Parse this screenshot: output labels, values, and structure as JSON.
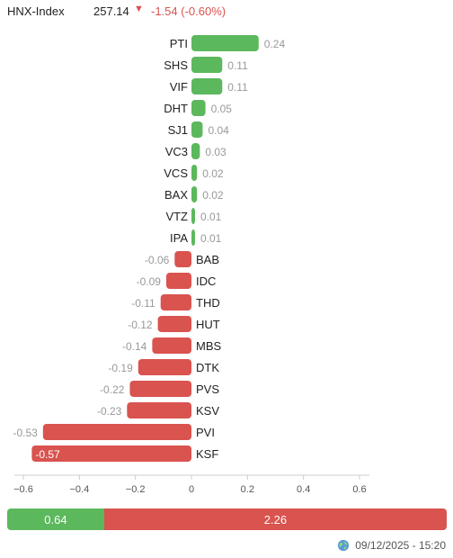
{
  "header": {
    "index_name": "HNX-Index",
    "index_value": "257.14",
    "change_text": "-1.54 (-0.60%)",
    "down_icon": "▼"
  },
  "colors": {
    "positive": "#5cb85c",
    "negative": "#d9534f",
    "axis": "#cccccc",
    "label": "#999999"
  },
  "chart_data": {
    "type": "bar",
    "orientation": "horizontal",
    "categories": [
      "PTI",
      "SHS",
      "VIF",
      "DHT",
      "SJ1",
      "VC3",
      "VCS",
      "BAX",
      "VTZ",
      "IPA",
      "BAB",
      "IDC",
      "THD",
      "HUT",
      "MBS",
      "DTK",
      "PVS",
      "KSV",
      "PVI",
      "KSF"
    ],
    "values": [
      0.24,
      0.11,
      0.11,
      0.05,
      0.04,
      0.03,
      0.02,
      0.02,
      0.01,
      0.01,
      -0.06,
      -0.09,
      -0.11,
      -0.12,
      -0.14,
      -0.19,
      -0.22,
      -0.23,
      -0.53,
      -0.57
    ],
    "value_labels": [
      "0.24",
      "0.11",
      "0.11",
      "0.05",
      "0.04",
      "0.03",
      "0.02",
      "0.02",
      "0.01",
      "0.01",
      "-0.06",
      "-0.09",
      "-0.11",
      "-0.12",
      "-0.14",
      "-0.19",
      "-0.22",
      "-0.23",
      "-0.53",
      "-0.57"
    ],
    "xlim": [
      -0.6,
      0.6
    ],
    "xticks": [
      -0.6,
      -0.4,
      -0.2,
      0,
      0.2,
      0.4,
      0.6
    ],
    "xtick_labels": [
      "−0.6",
      "−0.4",
      "−0.2",
      "0",
      "0.2",
      "0.4",
      "0.6"
    ],
    "grid": false
  },
  "breadth": {
    "advance_value": 0.64,
    "advance_label": "0.64",
    "decline_value": 2.26,
    "decline_label": "2.26"
  },
  "footer": {
    "timestamp": "09/12/2025 - 15:20",
    "icon": "globe-icon"
  }
}
